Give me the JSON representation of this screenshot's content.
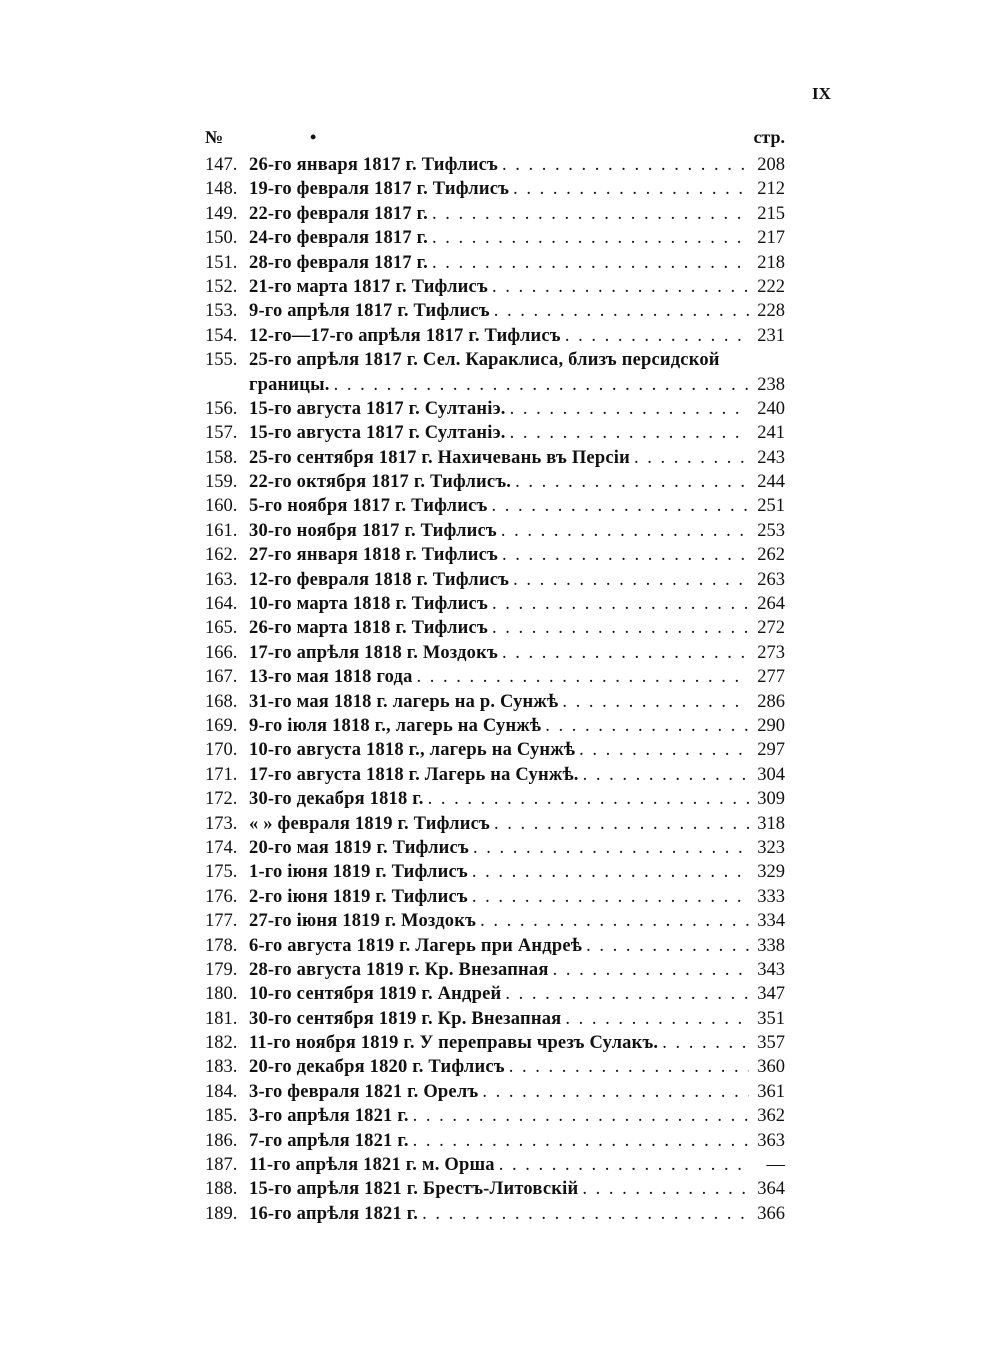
{
  "page_number": "IX",
  "header": {
    "number_label": "№",
    "mark": "•",
    "page_label": "стр."
  },
  "entries": [
    {
      "num": "147.",
      "text": "26-го января 1817 г. Тифлисъ",
      "page": "208"
    },
    {
      "num": "148.",
      "text": "19-го февраля 1817 г. Тифлисъ",
      "page": "212"
    },
    {
      "num": "149.",
      "text": "22-го февраля 1817 г.",
      "page": "215"
    },
    {
      "num": "150.",
      "text": "24-го февраля 1817 г.",
      "page": "217"
    },
    {
      "num": "151.",
      "text": "28-го февраля 1817 г.",
      "page": "218"
    },
    {
      "num": "152.",
      "text": "21-го марта 1817 г. Тифлисъ",
      "page": "222"
    },
    {
      "num": "153.",
      "text": "9-го апрѣля 1817 г. Тифлисъ",
      "page": "228"
    },
    {
      "num": "154.",
      "text": "12-го—17-го апрѣля 1817 г. Тифлисъ",
      "page": "231"
    },
    {
      "num": "155.",
      "text": "25-го апрѣля 1817 г. Сел. Караклиса, близъ персидской",
      "text2": "границы.",
      "page": "238"
    },
    {
      "num": "156.",
      "text": "15-го августа 1817 г. Султаніэ.",
      "page": "240"
    },
    {
      "num": "157.",
      "text": "15-го августа 1817 г. Султаніэ.",
      "page": "241"
    },
    {
      "num": "158.",
      "text": "25-го сентября 1817 г. Нахичевань въ Персіи",
      "page": "243"
    },
    {
      "num": "159.",
      "text": "22-го октября 1817 г. Тифлисъ.",
      "page": "244"
    },
    {
      "num": "160.",
      "text": "5-го ноября 1817 г. Тифлисъ",
      "page": "251"
    },
    {
      "num": "161.",
      "text": "30-го ноября 1817 г. Тифлисъ",
      "page": "253"
    },
    {
      "num": "162.",
      "text": "27-го января 1818 г. Тифлисъ",
      "page": "262"
    },
    {
      "num": "163.",
      "text": "12-го февраля 1818 г. Тифлисъ",
      "page": "263"
    },
    {
      "num": "164.",
      "text": "10-го марта 1818 г. Тифлисъ",
      "page": "264"
    },
    {
      "num": "165.",
      "text": "26-го марта 1818 г. Тифлисъ",
      "page": "272"
    },
    {
      "num": "166.",
      "text": "17-го апрѣля 1818 г. Моздокъ",
      "page": "273"
    },
    {
      "num": "167.",
      "text": "13-го мая 1818 года",
      "page": "277"
    },
    {
      "num": "168.",
      "text": "31-го мая 1818 г. лагерь на р. Сунжѣ",
      "page": "286"
    },
    {
      "num": "169.",
      "text": "9-го іюля 1818 г., лагерь на Сунжѣ",
      "page": "290"
    },
    {
      "num": "170.",
      "text": "10-го августа 1818 г., лагерь на Сунжѣ",
      "page": "297"
    },
    {
      "num": "171.",
      "text": "17-го августа 1818 г. Лагерь на Сунжѣ.",
      "page": "304"
    },
    {
      "num": "172.",
      "text": "30-го декабря 1818 г.",
      "page": "309"
    },
    {
      "num": "173.",
      "text": "«      » февраля 1819 г. Тифлисъ",
      "page": "318"
    },
    {
      "num": "174.",
      "text": "20-го мая 1819 г. Тифлисъ",
      "page": "323"
    },
    {
      "num": "175.",
      "text": "1-го іюня 1819 г. Тифлисъ",
      "page": "329"
    },
    {
      "num": "176.",
      "text": "2-го іюня 1819 г. Тифлисъ",
      "page": "333"
    },
    {
      "num": "177.",
      "text": "27-го іюня 1819 г. Моздокъ",
      "page": "334"
    },
    {
      "num": "178.",
      "text": "6-го августа 1819 г. Лагерь при Андреѣ",
      "page": "338"
    },
    {
      "num": "179.",
      "text": "28-го августа 1819 г. Кр. Внезапная",
      "page": "343"
    },
    {
      "num": "180.",
      "text": "10-го сентября 1819 г. Андрей",
      "page": "347"
    },
    {
      "num": "181.",
      "text": "30-го сентября 1819 г. Кр. Внезапная",
      "page": "351"
    },
    {
      "num": "182.",
      "text": "11-го ноября 1819 г. У переправы чрезъ Сулакъ.",
      "page": "357"
    },
    {
      "num": "183.",
      "text": "20-го декабря 1820 г. Тифлисъ",
      "page": "360"
    },
    {
      "num": "184.",
      "text": "3-го февраля 1821 г. Орелъ",
      "page": "361"
    },
    {
      "num": "185.",
      "text": "3-го апрѣля 1821 г.",
      "page": "362"
    },
    {
      "num": "186.",
      "text": "7-го апрѣля 1821 г.",
      "page": "363"
    },
    {
      "num": "187.",
      "text": "11-го апрѣля 1821 г. м. Орша",
      "page": "—"
    },
    {
      "num": "188.",
      "text": "15-го апрѣля 1821 г. Брестъ-Литовскій",
      "page": "364"
    },
    {
      "num": "189.",
      "text": "16-го апрѣля 1821 г.",
      "page": "366"
    }
  ]
}
